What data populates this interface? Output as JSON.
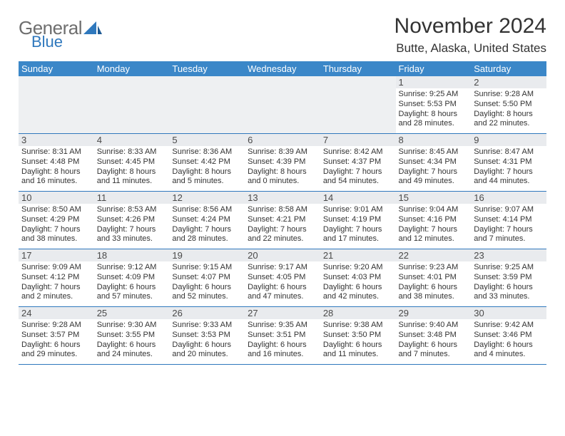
{
  "logo": {
    "word1": "General",
    "word2": "Blue"
  },
  "title": "November 2024",
  "location": "Butte, Alaska, United States",
  "colors": {
    "header_bg": "#3b87c8",
    "header_fg": "#ffffff",
    "rule": "#2f78bd",
    "daynum_bg": "#e9ebee",
    "blank_bg": "#eef0f2",
    "text": "#333333",
    "logo_gray": "#6e6e6e",
    "logo_blue": "#2f78bd"
  },
  "day_headers": [
    "Sunday",
    "Monday",
    "Tuesday",
    "Wednesday",
    "Thursday",
    "Friday",
    "Saturday"
  ],
  "weeks": [
    [
      {
        "n": "",
        "sunrise": "",
        "sunset": "",
        "daylight": ""
      },
      {
        "n": "",
        "sunrise": "",
        "sunset": "",
        "daylight": ""
      },
      {
        "n": "",
        "sunrise": "",
        "sunset": "",
        "daylight": ""
      },
      {
        "n": "",
        "sunrise": "",
        "sunset": "",
        "daylight": ""
      },
      {
        "n": "",
        "sunrise": "",
        "sunset": "",
        "daylight": ""
      },
      {
        "n": "1",
        "sunrise": "Sunrise: 9:25 AM",
        "sunset": "Sunset: 5:53 PM",
        "daylight": "Daylight: 8 hours and 28 minutes."
      },
      {
        "n": "2",
        "sunrise": "Sunrise: 9:28 AM",
        "sunset": "Sunset: 5:50 PM",
        "daylight": "Daylight: 8 hours and 22 minutes."
      }
    ],
    [
      {
        "n": "3",
        "sunrise": "Sunrise: 8:31 AM",
        "sunset": "Sunset: 4:48 PM",
        "daylight": "Daylight: 8 hours and 16 minutes."
      },
      {
        "n": "4",
        "sunrise": "Sunrise: 8:33 AM",
        "sunset": "Sunset: 4:45 PM",
        "daylight": "Daylight: 8 hours and 11 minutes."
      },
      {
        "n": "5",
        "sunrise": "Sunrise: 8:36 AM",
        "sunset": "Sunset: 4:42 PM",
        "daylight": "Daylight: 8 hours and 5 minutes."
      },
      {
        "n": "6",
        "sunrise": "Sunrise: 8:39 AM",
        "sunset": "Sunset: 4:39 PM",
        "daylight": "Daylight: 8 hours and 0 minutes."
      },
      {
        "n": "7",
        "sunrise": "Sunrise: 8:42 AM",
        "sunset": "Sunset: 4:37 PM",
        "daylight": "Daylight: 7 hours and 54 minutes."
      },
      {
        "n": "8",
        "sunrise": "Sunrise: 8:45 AM",
        "sunset": "Sunset: 4:34 PM",
        "daylight": "Daylight: 7 hours and 49 minutes."
      },
      {
        "n": "9",
        "sunrise": "Sunrise: 8:47 AM",
        "sunset": "Sunset: 4:31 PM",
        "daylight": "Daylight: 7 hours and 44 minutes."
      }
    ],
    [
      {
        "n": "10",
        "sunrise": "Sunrise: 8:50 AM",
        "sunset": "Sunset: 4:29 PM",
        "daylight": "Daylight: 7 hours and 38 minutes."
      },
      {
        "n": "11",
        "sunrise": "Sunrise: 8:53 AM",
        "sunset": "Sunset: 4:26 PM",
        "daylight": "Daylight: 7 hours and 33 minutes."
      },
      {
        "n": "12",
        "sunrise": "Sunrise: 8:56 AM",
        "sunset": "Sunset: 4:24 PM",
        "daylight": "Daylight: 7 hours and 28 minutes."
      },
      {
        "n": "13",
        "sunrise": "Sunrise: 8:58 AM",
        "sunset": "Sunset: 4:21 PM",
        "daylight": "Daylight: 7 hours and 22 minutes."
      },
      {
        "n": "14",
        "sunrise": "Sunrise: 9:01 AM",
        "sunset": "Sunset: 4:19 PM",
        "daylight": "Daylight: 7 hours and 17 minutes."
      },
      {
        "n": "15",
        "sunrise": "Sunrise: 9:04 AM",
        "sunset": "Sunset: 4:16 PM",
        "daylight": "Daylight: 7 hours and 12 minutes."
      },
      {
        "n": "16",
        "sunrise": "Sunrise: 9:07 AM",
        "sunset": "Sunset: 4:14 PM",
        "daylight": "Daylight: 7 hours and 7 minutes."
      }
    ],
    [
      {
        "n": "17",
        "sunrise": "Sunrise: 9:09 AM",
        "sunset": "Sunset: 4:12 PM",
        "daylight": "Daylight: 7 hours and 2 minutes."
      },
      {
        "n": "18",
        "sunrise": "Sunrise: 9:12 AM",
        "sunset": "Sunset: 4:09 PM",
        "daylight": "Daylight: 6 hours and 57 minutes."
      },
      {
        "n": "19",
        "sunrise": "Sunrise: 9:15 AM",
        "sunset": "Sunset: 4:07 PM",
        "daylight": "Daylight: 6 hours and 52 minutes."
      },
      {
        "n": "20",
        "sunrise": "Sunrise: 9:17 AM",
        "sunset": "Sunset: 4:05 PM",
        "daylight": "Daylight: 6 hours and 47 minutes."
      },
      {
        "n": "21",
        "sunrise": "Sunrise: 9:20 AM",
        "sunset": "Sunset: 4:03 PM",
        "daylight": "Daylight: 6 hours and 42 minutes."
      },
      {
        "n": "22",
        "sunrise": "Sunrise: 9:23 AM",
        "sunset": "Sunset: 4:01 PM",
        "daylight": "Daylight: 6 hours and 38 minutes."
      },
      {
        "n": "23",
        "sunrise": "Sunrise: 9:25 AM",
        "sunset": "Sunset: 3:59 PM",
        "daylight": "Daylight: 6 hours and 33 minutes."
      }
    ],
    [
      {
        "n": "24",
        "sunrise": "Sunrise: 9:28 AM",
        "sunset": "Sunset: 3:57 PM",
        "daylight": "Daylight: 6 hours and 29 minutes."
      },
      {
        "n": "25",
        "sunrise": "Sunrise: 9:30 AM",
        "sunset": "Sunset: 3:55 PM",
        "daylight": "Daylight: 6 hours and 24 minutes."
      },
      {
        "n": "26",
        "sunrise": "Sunrise: 9:33 AM",
        "sunset": "Sunset: 3:53 PM",
        "daylight": "Daylight: 6 hours and 20 minutes."
      },
      {
        "n": "27",
        "sunrise": "Sunrise: 9:35 AM",
        "sunset": "Sunset: 3:51 PM",
        "daylight": "Daylight: 6 hours and 16 minutes."
      },
      {
        "n": "28",
        "sunrise": "Sunrise: 9:38 AM",
        "sunset": "Sunset: 3:50 PM",
        "daylight": "Daylight: 6 hours and 11 minutes."
      },
      {
        "n": "29",
        "sunrise": "Sunrise: 9:40 AM",
        "sunset": "Sunset: 3:48 PM",
        "daylight": "Daylight: 6 hours and 7 minutes."
      },
      {
        "n": "30",
        "sunrise": "Sunrise: 9:42 AM",
        "sunset": "Sunset: 3:46 PM",
        "daylight": "Daylight: 6 hours and 4 minutes."
      }
    ]
  ]
}
